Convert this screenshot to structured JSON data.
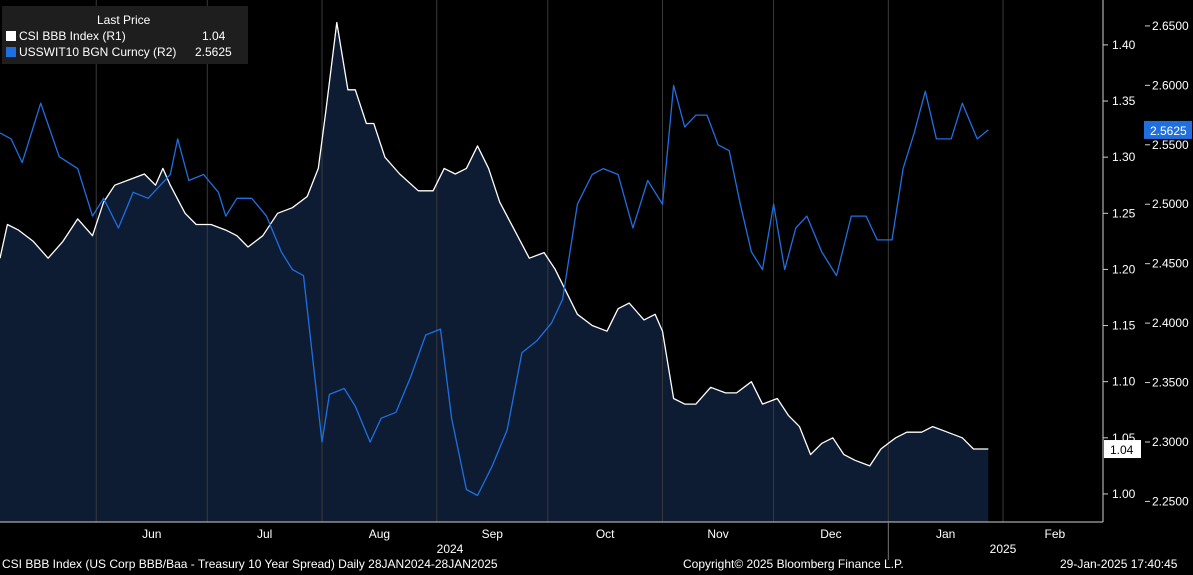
{
  "legend": {
    "header": "Last Price",
    "items": [
      {
        "label": "CSI BBB Index  (R1)",
        "value": "1.04",
        "color": "#ffffff"
      },
      {
        "label": "USSWIT10 BGN Curncy  (R2)",
        "value": "2.5625",
        "color": "#1f6fe0"
      }
    ]
  },
  "footer": {
    "description": "CSI BBB Index (US Corp BBB/Baa - Treasury 10 Year Spread)  Daily 28JAN2024-28JAN2025",
    "copyright": "Copyright© 2025 Bloomberg Finance L.P.",
    "timestamp": "29-Jan-2025 17:40:45"
  },
  "chart_data": {
    "type": "line",
    "x_axis": {
      "months": [
        "Jun",
        "Jul",
        "Aug",
        "Sep",
        "Oct",
        "Nov",
        "Dec",
        "Jan",
        "Feb"
      ],
      "years": [
        "2024",
        "2025"
      ],
      "range": [
        "2024-05-06",
        "2025-02-28"
      ]
    },
    "y_axis_r1": {
      "ticks": [
        "1.00",
        "1.05",
        "1.10",
        "1.15",
        "1.20",
        "1.25",
        "1.30",
        "1.35",
        "1.40"
      ],
      "range": [
        0.975,
        1.44
      ]
    },
    "y_axis_r2": {
      "ticks": [
        "2.2500",
        "2.3000",
        "2.3500",
        "2.4000",
        "2.4500",
        "2.5000",
        "2.5500",
        "2.6000",
        "2.6500"
      ],
      "range": [
        2.2327,
        2.6718
      ]
    },
    "last_labels": {
      "r1": "1.04",
      "r2": "2.5625"
    },
    "series": [
      {
        "name": "CSI BBB Index",
        "axis": "R1",
        "color": "#ffffff",
        "fill": "#0d1c33",
        "points": [
          [
            "2024-05-06",
            1.21
          ],
          [
            "2024-05-08",
            1.24
          ],
          [
            "2024-05-11",
            1.235
          ],
          [
            "2024-05-15",
            1.225
          ],
          [
            "2024-05-19",
            1.21
          ],
          [
            "2024-05-23",
            1.225
          ],
          [
            "2024-05-27",
            1.245
          ],
          [
            "2024-05-31",
            1.23
          ],
          [
            "2024-06-03",
            1.26
          ],
          [
            "2024-06-06",
            1.275
          ],
          [
            "2024-06-10",
            1.28
          ],
          [
            "2024-06-14",
            1.285
          ],
          [
            "2024-06-17",
            1.275
          ],
          [
            "2024-06-19",
            1.29
          ],
          [
            "2024-06-21",
            1.275
          ],
          [
            "2024-06-25",
            1.25
          ],
          [
            "2024-06-28",
            1.24
          ],
          [
            "2024-07-02",
            1.24
          ],
          [
            "2024-07-06",
            1.235
          ],
          [
            "2024-07-09",
            1.23
          ],
          [
            "2024-07-12",
            1.22
          ],
          [
            "2024-07-16",
            1.23
          ],
          [
            "2024-07-20",
            1.25
          ],
          [
            "2024-07-24",
            1.255
          ],
          [
            "2024-07-28",
            1.265
          ],
          [
            "2024-07-31",
            1.29
          ],
          [
            "2024-08-02",
            1.34
          ],
          [
            "2024-08-05",
            1.42
          ],
          [
            "2024-08-08",
            1.36
          ],
          [
            "2024-08-10",
            1.36
          ],
          [
            "2024-08-13",
            1.33
          ],
          [
            "2024-08-15",
            1.33
          ],
          [
            "2024-08-18",
            1.3
          ],
          [
            "2024-08-22",
            1.285
          ],
          [
            "2024-08-27",
            1.27
          ],
          [
            "2024-08-31",
            1.27
          ],
          [
            "2024-09-03",
            1.29
          ],
          [
            "2024-09-06",
            1.285
          ],
          [
            "2024-09-09",
            1.29
          ],
          [
            "2024-09-12",
            1.31
          ],
          [
            "2024-09-15",
            1.29
          ],
          [
            "2024-09-18",
            1.26
          ],
          [
            "2024-09-22",
            1.235
          ],
          [
            "2024-09-26",
            1.21
          ],
          [
            "2024-09-30",
            1.215
          ],
          [
            "2024-10-03",
            1.2
          ],
          [
            "2024-10-06",
            1.18
          ],
          [
            "2024-10-09",
            1.16
          ],
          [
            "2024-10-13",
            1.15
          ],
          [
            "2024-10-17",
            1.145
          ],
          [
            "2024-10-20",
            1.165
          ],
          [
            "2024-10-23",
            1.17
          ],
          [
            "2024-10-27",
            1.155
          ],
          [
            "2024-10-30",
            1.16
          ],
          [
            "2024-11-01",
            1.145
          ],
          [
            "2024-11-04",
            1.085
          ],
          [
            "2024-11-07",
            1.08
          ],
          [
            "2024-11-10",
            1.08
          ],
          [
            "2024-11-14",
            1.095
          ],
          [
            "2024-11-18",
            1.09
          ],
          [
            "2024-11-21",
            1.09
          ],
          [
            "2024-11-25",
            1.1
          ],
          [
            "2024-11-28",
            1.08
          ],
          [
            "2024-12-02",
            1.085
          ],
          [
            "2024-12-05",
            1.07
          ],
          [
            "2024-12-08",
            1.06
          ],
          [
            "2024-12-11",
            1.035
          ],
          [
            "2024-12-14",
            1.045
          ],
          [
            "2024-12-17",
            1.05
          ],
          [
            "2024-12-20",
            1.035
          ],
          [
            "2024-12-23",
            1.03
          ],
          [
            "2024-12-27",
            1.025
          ],
          [
            "2024-12-30",
            1.04
          ],
          [
            "2025-01-03",
            1.05
          ],
          [
            "2025-01-06",
            1.055
          ],
          [
            "2025-01-10",
            1.055
          ],
          [
            "2025-01-13",
            1.06
          ],
          [
            "2025-01-17",
            1.055
          ],
          [
            "2025-01-21",
            1.05
          ],
          [
            "2025-01-24",
            1.04
          ],
          [
            "2025-01-28",
            1.04
          ]
        ]
      },
      {
        "name": "USSWIT10 BGN Curncy",
        "axis": "R2",
        "color": "#1f6fe0",
        "points": [
          [
            "2024-05-06",
            2.56
          ],
          [
            "2024-05-09",
            2.555
          ],
          [
            "2024-05-12",
            2.535
          ],
          [
            "2024-05-17",
            2.585
          ],
          [
            "2024-05-22",
            2.54
          ],
          [
            "2024-05-27",
            2.53
          ],
          [
            "2024-05-31",
            2.49
          ],
          [
            "2024-06-03",
            2.505
          ],
          [
            "2024-06-07",
            2.48
          ],
          [
            "2024-06-11",
            2.51
          ],
          [
            "2024-06-15",
            2.505
          ],
          [
            "2024-06-18",
            2.515
          ],
          [
            "2024-06-21",
            2.525
          ],
          [
            "2024-06-23",
            2.555
          ],
          [
            "2024-06-26",
            2.52
          ],
          [
            "2024-06-30",
            2.525
          ],
          [
            "2024-07-04",
            2.51
          ],
          [
            "2024-07-06",
            2.49
          ],
          [
            "2024-07-09",
            2.505
          ],
          [
            "2024-07-13",
            2.505
          ],
          [
            "2024-07-17",
            2.49
          ],
          [
            "2024-07-21",
            2.46
          ],
          [
            "2024-07-24",
            2.445
          ],
          [
            "2024-07-27",
            2.44
          ],
          [
            "2024-08-01",
            2.3
          ],
          [
            "2024-08-03",
            2.34
          ],
          [
            "2024-08-07",
            2.345
          ],
          [
            "2024-08-10",
            2.33
          ],
          [
            "2024-08-14",
            2.3
          ],
          [
            "2024-08-17",
            2.32
          ],
          [
            "2024-08-21",
            2.325
          ],
          [
            "2024-08-25",
            2.355
          ],
          [
            "2024-08-29",
            2.39
          ],
          [
            "2024-09-02",
            2.395
          ],
          [
            "2024-09-05",
            2.32
          ],
          [
            "2024-09-09",
            2.26
          ],
          [
            "2024-09-12",
            2.255
          ],
          [
            "2024-09-16",
            2.28
          ],
          [
            "2024-09-20",
            2.31
          ],
          [
            "2024-09-24",
            2.375
          ],
          [
            "2024-09-28",
            2.385
          ],
          [
            "2024-10-02",
            2.4
          ],
          [
            "2024-10-05",
            2.42
          ],
          [
            "2024-10-09",
            2.5
          ],
          [
            "2024-10-13",
            2.525
          ],
          [
            "2024-10-16",
            2.53
          ],
          [
            "2024-10-20",
            2.525
          ],
          [
            "2024-10-24",
            2.48
          ],
          [
            "2024-10-28",
            2.52
          ],
          [
            "2024-11-01",
            2.5
          ],
          [
            "2024-11-04",
            2.6
          ],
          [
            "2024-11-07",
            2.565
          ],
          [
            "2024-11-10",
            2.575
          ],
          [
            "2024-11-13",
            2.575
          ],
          [
            "2024-11-16",
            2.55
          ],
          [
            "2024-11-19",
            2.545
          ],
          [
            "2024-11-22",
            2.5
          ],
          [
            "2024-11-25",
            2.46
          ],
          [
            "2024-11-28",
            2.445
          ],
          [
            "2024-12-01",
            2.5
          ],
          [
            "2024-12-04",
            2.445
          ],
          [
            "2024-12-07",
            2.48
          ],
          [
            "2024-12-10",
            2.49
          ],
          [
            "2024-12-14",
            2.46
          ],
          [
            "2024-12-18",
            2.44
          ],
          [
            "2024-12-22",
            2.49
          ],
          [
            "2024-12-26",
            2.49
          ],
          [
            "2024-12-29",
            2.47
          ],
          [
            "2025-01-02",
            2.47
          ],
          [
            "2025-01-05",
            2.53
          ],
          [
            "2025-01-08",
            2.56
          ],
          [
            "2025-01-11",
            2.595
          ],
          [
            "2025-01-14",
            2.555
          ],
          [
            "2025-01-18",
            2.555
          ],
          [
            "2025-01-21",
            2.585
          ],
          [
            "2025-01-25",
            2.555
          ],
          [
            "2025-01-28",
            2.5625
          ]
        ]
      }
    ],
    "grid": "vertical month lines",
    "legend_position": "top-left"
  }
}
